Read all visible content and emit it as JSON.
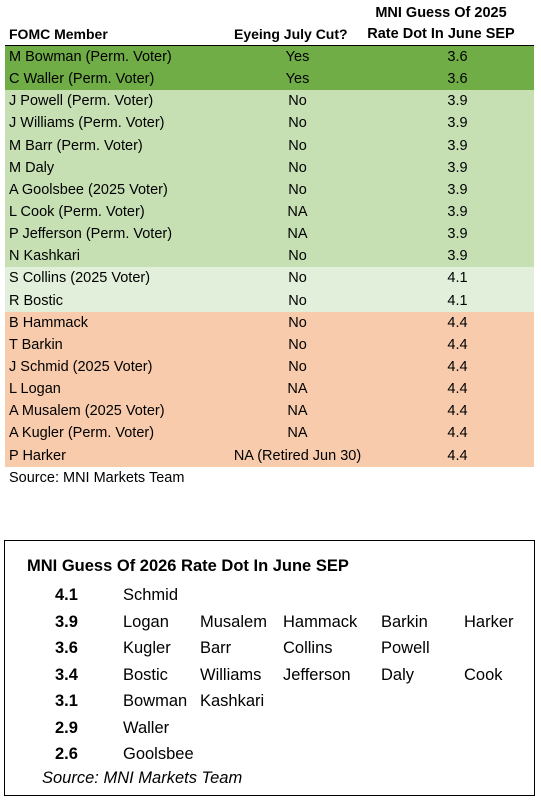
{
  "table1": {
    "headers": {
      "member": "FOMC Member",
      "july_cut": "Eyeing July Cut?",
      "dot_line1": "MNI Guess Of 2025",
      "dot_line2": "Rate Dot In June SEP"
    },
    "rows": [
      {
        "member": "M Bowman (Perm. Voter)",
        "july_cut": "Yes",
        "dot": "3.6",
        "shade": "dark-green"
      },
      {
        "member": "C Waller (Perm. Voter)",
        "july_cut": "Yes",
        "dot": "3.6",
        "shade": "dark-green"
      },
      {
        "member": "J Powell (Perm. Voter)",
        "july_cut": "No",
        "dot": "3.9",
        "shade": "light-green"
      },
      {
        "member": "J Williams (Perm. Voter)",
        "july_cut": "No",
        "dot": "3.9",
        "shade": "light-green"
      },
      {
        "member": "M Barr (Perm. Voter)",
        "july_cut": "No",
        "dot": "3.9",
        "shade": "light-green"
      },
      {
        "member": "M Daly",
        "july_cut": "No",
        "dot": "3.9",
        "shade": "light-green"
      },
      {
        "member": "A Goolsbee (2025 Voter)",
        "july_cut": "No",
        "dot": "3.9",
        "shade": "light-green"
      },
      {
        "member": "L Cook (Perm. Voter)",
        "july_cut": "NA",
        "dot": "3.9",
        "shade": "light-green"
      },
      {
        "member": "P Jefferson (Perm. Voter)",
        "july_cut": "NA",
        "dot": "3.9",
        "shade": "light-green"
      },
      {
        "member": "N Kashkari",
        "july_cut": "No",
        "dot": "3.9",
        "shade": "light-green"
      },
      {
        "member": "S Collins (2025 Voter)",
        "july_cut": "No",
        "dot": "4.1",
        "shade": "pale-green"
      },
      {
        "member": "R Bostic",
        "july_cut": "No",
        "dot": "4.1",
        "shade": "pale-green"
      },
      {
        "member": "B Hammack",
        "july_cut": "No",
        "dot": "4.4",
        "shade": "orange"
      },
      {
        "member": "T Barkin",
        "july_cut": "No",
        "dot": "4.4",
        "shade": "orange"
      },
      {
        "member": "J Schmid (2025 Voter)",
        "july_cut": "No",
        "dot": "4.4",
        "shade": "orange"
      },
      {
        "member": "L Logan",
        "july_cut": "NA",
        "dot": "4.4",
        "shade": "orange"
      },
      {
        "member": "A Musalem (2025 Voter)",
        "july_cut": "NA",
        "dot": "4.4",
        "shade": "orange"
      },
      {
        "member": "A Kugler (Perm. Voter)",
        "july_cut": "NA",
        "dot": "4.4",
        "shade": "orange"
      },
      {
        "member": "P Harker",
        "july_cut": "NA (Retired Jun 30)",
        "dot": "4.4",
        "shade": "orange"
      }
    ],
    "source": "Source: MNI Markets Team"
  },
  "colors": {
    "dark-green": "#70ad47",
    "light-green": "#c6e0b4",
    "pale-green": "#e2efda",
    "orange": "#f8cbad"
  },
  "table2": {
    "title": "MNI Guess Of 2026 Rate Dot In June SEP",
    "rows": [
      {
        "value": "4.1",
        "names": [
          "Schmid"
        ]
      },
      {
        "value": "3.9",
        "names": [
          "Logan",
          "Musalem",
          "Hammack",
          "Barkin",
          "Harker"
        ]
      },
      {
        "value": "3.6",
        "names": [
          "Kugler",
          "Barr",
          "Collins",
          "Powell"
        ]
      },
      {
        "value": "3.4",
        "names": [
          "Bostic",
          "Williams",
          "Jefferson",
          "Daly",
          "Cook"
        ]
      },
      {
        "value": "3.1",
        "names": [
          "Bowman",
          "Kashkari"
        ]
      },
      {
        "value": "2.9",
        "names": [
          "Waller"
        ]
      },
      {
        "value": "2.6",
        "names": [
          "Goolsbee"
        ]
      }
    ],
    "source": "Source: MNI Markets Team"
  }
}
